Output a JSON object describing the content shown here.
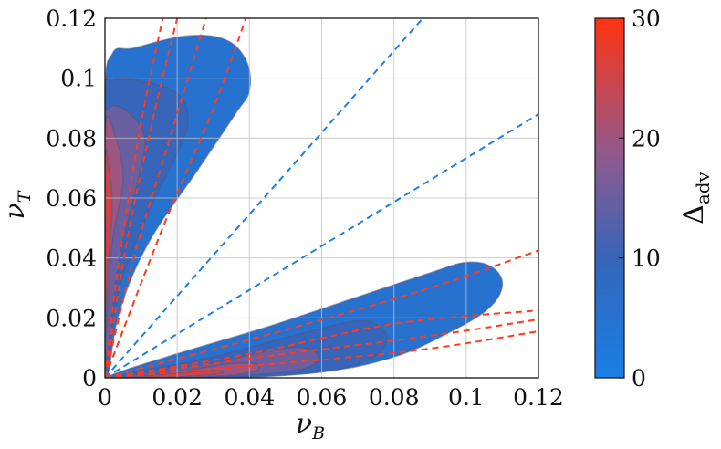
{
  "chart_data": {
    "type": "contour",
    "xlabel": {
      "main": "ν",
      "sub": "B"
    },
    "ylabel": {
      "main": "ν",
      "sub": "T"
    },
    "xlim": [
      0,
      0.12
    ],
    "ylim": [
      0,
      0.12
    ],
    "x_ticks": [
      "0",
      "0.02",
      "0.04",
      "0.06",
      "0.08",
      "0.1",
      "0.12"
    ],
    "y_ticks": [
      "0",
      "0.02",
      "0.04",
      "0.06",
      "0.08",
      "0.1",
      "0.12"
    ],
    "grid": true,
    "colorbar": {
      "label": {
        "main": "Δ",
        "sub": "adv"
      },
      "range": [
        0,
        30
      ],
      "ticks": [
        "0",
        "10",
        "20",
        "30"
      ],
      "colors": [
        "#1a7fe6",
        "#3565b9",
        "#905a8e",
        "#ff3311"
      ]
    },
    "regions": [
      {
        "name": "upper-lobe",
        "value_levels": [
          5,
          10,
          15,
          20,
          25
        ],
        "contours": [
          {
            "level": 5,
            "pts": [
              [
                0.001,
                0.002
              ],
              [
                0.004,
                0.022
              ],
              [
                0.012,
                0.045
              ],
              [
                0.026,
                0.07
              ],
              [
                0.036,
                0.088
              ],
              [
                0.04,
                0.096
              ],
              [
                0.039,
                0.106
              ],
              [
                0.033,
                0.113
              ],
              [
                0.022,
                0.114
              ],
              [
                0.008,
                0.11
              ],
              [
                0.002,
                0.108
              ],
              [
                0.0,
                0.09
              ],
              [
                0.0,
                0.002
              ]
            ]
          },
          {
            "level": 10,
            "pts": [
              [
                0.0,
                0.004
              ],
              [
                0.004,
                0.03
              ],
              [
                0.012,
                0.055
              ],
              [
                0.02,
                0.075
              ],
              [
                0.023,
                0.086
              ],
              [
                0.02,
                0.095
              ],
              [
                0.01,
                0.099
              ],
              [
                0.002,
                0.099
              ],
              [
                0.0,
                0.09
              ]
            ]
          },
          {
            "level": 15,
            "pts": [
              [
                0.0,
                0.008
              ],
              [
                0.004,
                0.04
              ],
              [
                0.009,
                0.065
              ],
              [
                0.011,
                0.08
              ],
              [
                0.006,
                0.089
              ],
              [
                0.001,
                0.09
              ],
              [
                0.0,
                0.08
              ]
            ]
          },
          {
            "level": 20,
            "pts": [
              [
                0.0,
                0.015
              ],
              [
                0.002,
                0.045
              ],
              [
                0.005,
                0.066
              ],
              [
                0.003,
                0.08
              ],
              [
                0.0,
                0.082
              ]
            ]
          },
          {
            "level": 25,
            "pts": [
              [
                0.0,
                0.02
              ],
              [
                0.001,
                0.04
              ],
              [
                0.002,
                0.058
              ],
              [
                0.001,
                0.07
              ],
              [
                0.0,
                0.072
              ]
            ]
          }
        ]
      },
      {
        "name": "lower-lobe",
        "value_levels": [
          5,
          10,
          15,
          20,
          25
        ],
        "contours": [
          {
            "level": 5,
            "pts": [
              [
                0.002,
                0.001
              ],
              [
                0.02,
                0.008
              ],
              [
                0.045,
                0.017
              ],
              [
                0.07,
                0.027
              ],
              [
                0.09,
                0.035
              ],
              [
                0.1,
                0.0385
              ],
              [
                0.107,
                0.037
              ],
              [
                0.11,
                0.031
              ],
              [
                0.106,
                0.023
              ],
              [
                0.095,
                0.015
              ],
              [
                0.08,
                0.007
              ],
              [
                0.06,
                0.002
              ],
              [
                0.03,
                0.0
              ],
              [
                0.005,
                0.0
              ]
            ]
          },
          {
            "level": 10,
            "pts": [
              [
                0.005,
                0.001
              ],
              [
                0.03,
                0.007
              ],
              [
                0.055,
                0.015
              ],
              [
                0.07,
                0.019
              ],
              [
                0.076,
                0.017
              ],
              [
                0.078,
                0.012
              ],
              [
                0.073,
                0.006
              ],
              [
                0.06,
                0.002
              ],
              [
                0.035,
                0.0
              ],
              [
                0.008,
                0.0
              ]
            ]
          },
          {
            "level": 15,
            "pts": [
              [
                0.008,
                0.001
              ],
              [
                0.03,
                0.005
              ],
              [
                0.045,
                0.009
              ],
              [
                0.055,
                0.01
              ],
              [
                0.059,
                0.007
              ],
              [
                0.055,
                0.003
              ],
              [
                0.04,
                0.001
              ],
              [
                0.015,
                0.0
              ]
            ]
          },
          {
            "level": 20,
            "pts": [
              [
                0.01,
                0.0008
              ],
              [
                0.025,
                0.003
              ],
              [
                0.036,
                0.0048
              ],
              [
                0.042,
                0.0045
              ],
              [
                0.041,
                0.002
              ],
              [
                0.03,
                0.0005
              ],
              [
                0.012,
                0.0
              ]
            ]
          },
          {
            "level": 25,
            "pts": [
              [
                0.01,
                0.0005
              ],
              [
                0.022,
                0.0018
              ],
              [
                0.03,
                0.0025
              ],
              [
                0.032,
                0.0015
              ],
              [
                0.02,
                0.0003
              ]
            ]
          }
        ]
      }
    ],
    "dashed_lines": [
      {
        "color": "red",
        "pts": [
          [
            0,
            0
          ],
          [
            0.004,
            0.04
          ],
          [
            0.01,
            0.085
          ],
          [
            0.016,
            0.12
          ]
        ]
      },
      {
        "color": "red",
        "pts": [
          [
            0,
            0
          ],
          [
            0.006,
            0.045
          ],
          [
            0.013,
            0.085
          ],
          [
            0.02,
            0.12
          ]
        ]
      },
      {
        "color": "red",
        "pts": [
          [
            0,
            0
          ],
          [
            0.008,
            0.04
          ],
          [
            0.018,
            0.08
          ],
          [
            0.028,
            0.12
          ]
        ]
      },
      {
        "color": "red",
        "pts": [
          [
            0,
            0
          ],
          [
            0.016,
            0.05
          ],
          [
            0.03,
            0.09
          ],
          [
            0.039,
            0.12
          ]
        ]
      },
      {
        "color": "blue",
        "pts": [
          [
            0,
            0
          ],
          [
            0.088,
            0.12
          ]
        ]
      },
      {
        "color": "blue",
        "pts": [
          [
            0,
            0
          ],
          [
            0.12,
            0.088
          ]
        ]
      },
      {
        "color": "red",
        "pts": [
          [
            0,
            0
          ],
          [
            0.05,
            0.016
          ],
          [
            0.09,
            0.03
          ],
          [
            0.12,
            0.0425
          ]
        ]
      },
      {
        "color": "red",
        "pts": [
          [
            0,
            0
          ],
          [
            0.04,
            0.008
          ],
          [
            0.08,
            0.018
          ],
          [
            0.12,
            0.0225
          ]
        ]
      },
      {
        "color": "red",
        "pts": [
          [
            0,
            0
          ],
          [
            0.05,
            0.008
          ],
          [
            0.09,
            0.014
          ],
          [
            0.12,
            0.0195
          ]
        ]
      },
      {
        "color": "red",
        "pts": [
          [
            0,
            0
          ],
          [
            0.04,
            0.004
          ],
          [
            0.085,
            0.009
          ],
          [
            0.12,
            0.0155
          ]
        ]
      }
    ],
    "line_colors": {
      "red": "#ff3b1f",
      "blue": "#1f7fe0"
    }
  }
}
